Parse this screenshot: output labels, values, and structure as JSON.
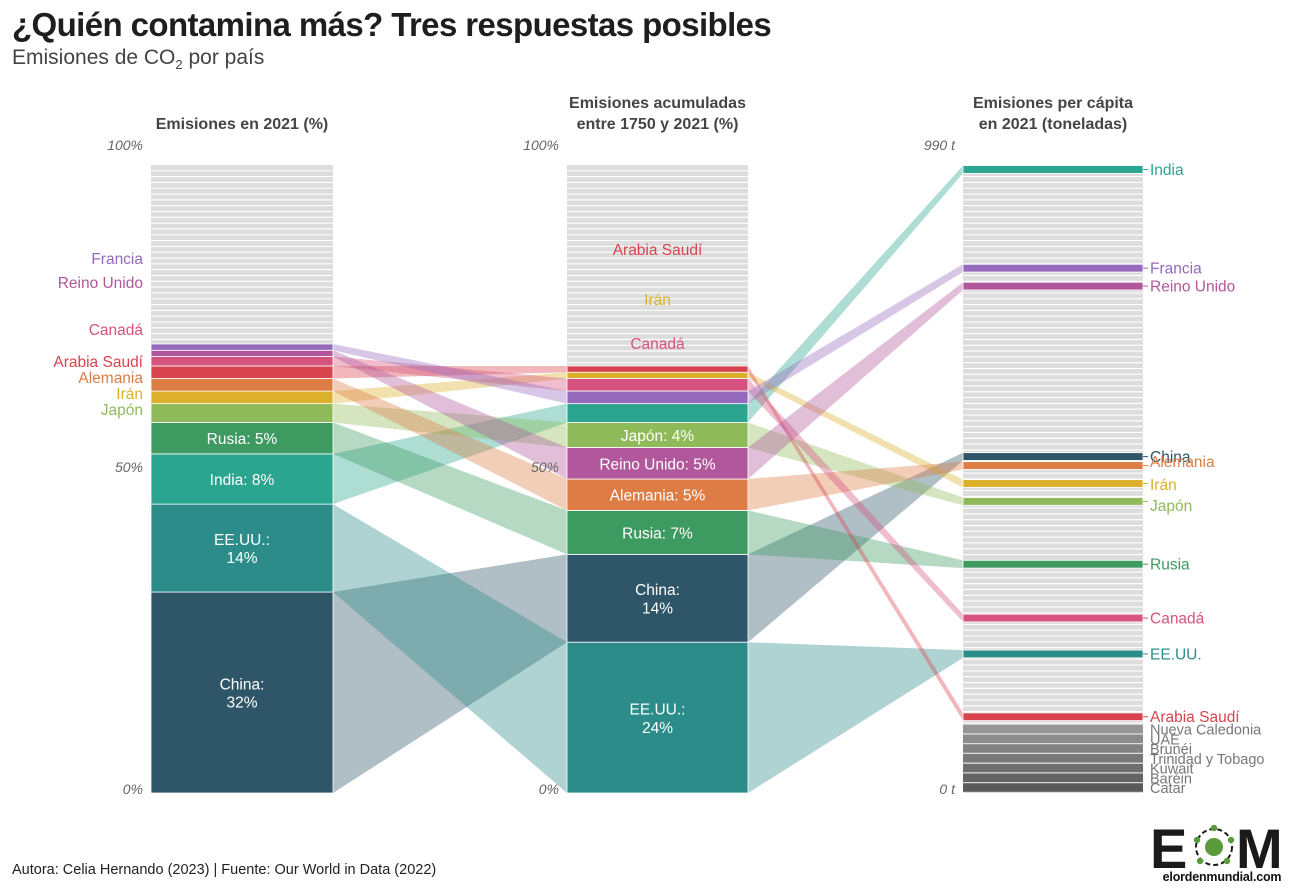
{
  "header": {
    "title": "¿Quién contamina más? Tres respuestas posibles",
    "subtitle_main": "Emisiones de CO",
    "subtitle_sub": "2",
    "subtitle_end": " por país"
  },
  "footer": {
    "credit": "Autora: Celia Hernando  (2023) | Fuente: Our World in Data (2022)"
  },
  "logo": {
    "mark": "EOM",
    "site": "elordenmundial.com"
  },
  "colors": {
    "China": "#2f5569",
    "EE.UU.": "#2b8c8a",
    "India": "#2ba58f",
    "Rusia": "#3d9a60",
    "Japón": "#8fba5a",
    "Irán": "#ddb02c",
    "Alemania": "#de7c45",
    "Arabia Saudí": "#d9434d",
    "Canadá": "#d6527f",
    "Reino Unido": "#b1579c",
    "Francia": "#9569bb",
    "other": "#dcdcdc",
    "gray_dark": "#6a6a6a"
  },
  "chart_data": {
    "type": "slope-stacked-bar",
    "columns": [
      {
        "key": "emisiones_2021",
        "title_lines": [
          "Emisiones en 2021 (%)"
        ],
        "axis_top": "100%",
        "axis_mid": "50%",
        "axis_bottom": "0%",
        "unit": "percent",
        "stack_order_bottom_to_top": [
          "China",
          "EE.UU.",
          "India",
          "Rusia",
          "Japón",
          "Irán",
          "Alemania",
          "Arabia Saudí",
          "Canadá",
          "Reino Unido",
          "Francia"
        ],
        "values": {
          "China": 32,
          "EE.UU.": 14,
          "India": 8,
          "Rusia": 5,
          "Japón": 3,
          "Irán": 2,
          "Alemania": 2,
          "Arabia Saudí": 2,
          "Canadá": 1.5,
          "Reino Unido": 1,
          "Francia": 1
        },
        "inside_labels": {
          "China": "China:\n32%",
          "EE.UU.": "EE.UU.:\n14%",
          "India": "India: 8%",
          "Rusia": "Rusia: 5%"
        },
        "side_labels": [
          "Francia",
          "Reino Unido",
          "Canadá",
          "Arabia Saudí",
          "Alemania",
          "Irán",
          "Japón"
        ]
      },
      {
        "key": "emisiones_acumuladas",
        "title_lines": [
          "Emisiones acumuladas",
          "entre 1750 y 2021 (%)"
        ],
        "axis_top": "100%",
        "axis_mid": "50%",
        "axis_bottom": "0%",
        "unit": "percent",
        "stack_order_bottom_to_top": [
          "EE.UU.",
          "China",
          "Rusia",
          "Alemania",
          "Reino Unido",
          "Japón",
          "India",
          "Francia",
          "Canadá",
          "Irán",
          "Arabia Saudí"
        ],
        "values": {
          "EE.UU.": 24,
          "China": 14,
          "Rusia": 7,
          "Alemania": 5,
          "Reino Unido": 5,
          "Japón": 4,
          "India": 3,
          "Francia": 2,
          "Canadá": 2,
          "Irán": 1,
          "Arabia Saudí": 1
        },
        "inside_labels": {
          "EE.UU.": "EE.UU.:\n24%",
          "China": "China:\n14%",
          "Rusia": "Rusia: 7%",
          "Alemania": "Alemania: 5%",
          "Reino Unido": "Reino Unido: 5%",
          "Japón": "Japón: 4%"
        },
        "top_labels": [
          "Arabia Saudí",
          "Irán",
          "Canadá"
        ]
      },
      {
        "key": "emisiones_per_capita",
        "title_lines": [
          "Emisiones per cápita",
          "en 2021 (toneladas)"
        ],
        "axis_top": "990 t",
        "axis_bottom": "0 t",
        "unit": "rank",
        "ranks_from_top": {
          "India": 1,
          "Francia": 12,
          "Reino Unido": 14,
          "China": 33,
          "Alemania": 34,
          "Irán": 36,
          "Japón": 38,
          "Rusia": 45,
          "Canadá": 51,
          "EE.UU.": 55,
          "Arabia Saudí": 62
        },
        "right_labels": [
          "India",
          "Francia",
          "Reino Unido",
          "China",
          "Alemania",
          "Irán",
          "Japón",
          "Rusia",
          "Canadá",
          "EE.UU.",
          "Arabia Saudí"
        ],
        "gray_bottom_labels": [
          "Nueva Caledonia",
          "UAE",
          "Brunéi",
          "Trinidad y Tobago",
          "Kuwait",
          "Baréin",
          "Catar"
        ]
      }
    ]
  }
}
